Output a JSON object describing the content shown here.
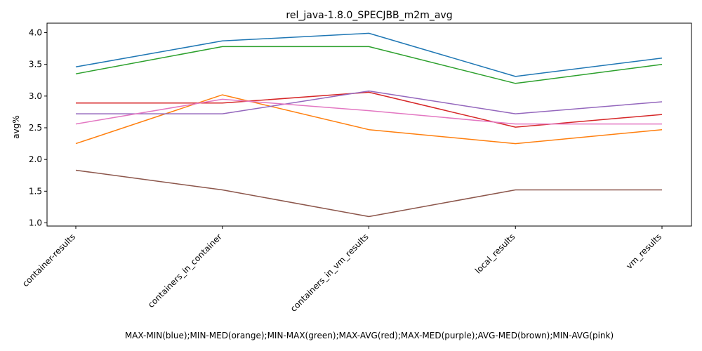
{
  "chart_data": {
    "type": "line",
    "title": "rel_java-1.8.0_SPECJBB_m2m_avg",
    "xlabel": "MAX-MIN(blue);MIN-MED(orange);MIN-MAX(green);MAX-AVG(red);MAX-MED(purple);AVG-MED(brown);MIN-AVG(pink)",
    "ylabel": "avg%",
    "categories": [
      "container-results",
      "containers_in_container",
      "containers_in_vm_results",
      "local_results",
      "vm_results"
    ],
    "ylim": [
      0.95,
      4.15
    ],
    "yticks": [
      "1.0",
      "1.5",
      "2.0",
      "2.5",
      "3.0",
      "3.5",
      "4.0"
    ],
    "grid": false,
    "series": [
      {
        "color": "#1f77b4",
        "values": [
          3.46,
          3.87,
          3.99,
          3.31,
          3.6
        ]
      },
      {
        "color": "#ff7f0e",
        "values": [
          2.25,
          3.02,
          2.47,
          2.25,
          2.47
        ]
      },
      {
        "color": "#2ca02c",
        "values": [
          3.35,
          3.78,
          3.78,
          3.2,
          3.5
        ]
      },
      {
        "color": "#d62728",
        "values": [
          2.89,
          2.89,
          3.06,
          2.51,
          2.71
        ]
      },
      {
        "color": "#9467bd",
        "values": [
          2.72,
          2.72,
          3.08,
          2.72,
          2.91
        ]
      },
      {
        "color": "#8c564b",
        "values": [
          1.83,
          1.52,
          1.1,
          1.52,
          1.52
        ]
      },
      {
        "color": "#e377c2",
        "values": [
          2.56,
          2.95,
          2.77,
          2.56,
          2.56
        ]
      }
    ]
  }
}
